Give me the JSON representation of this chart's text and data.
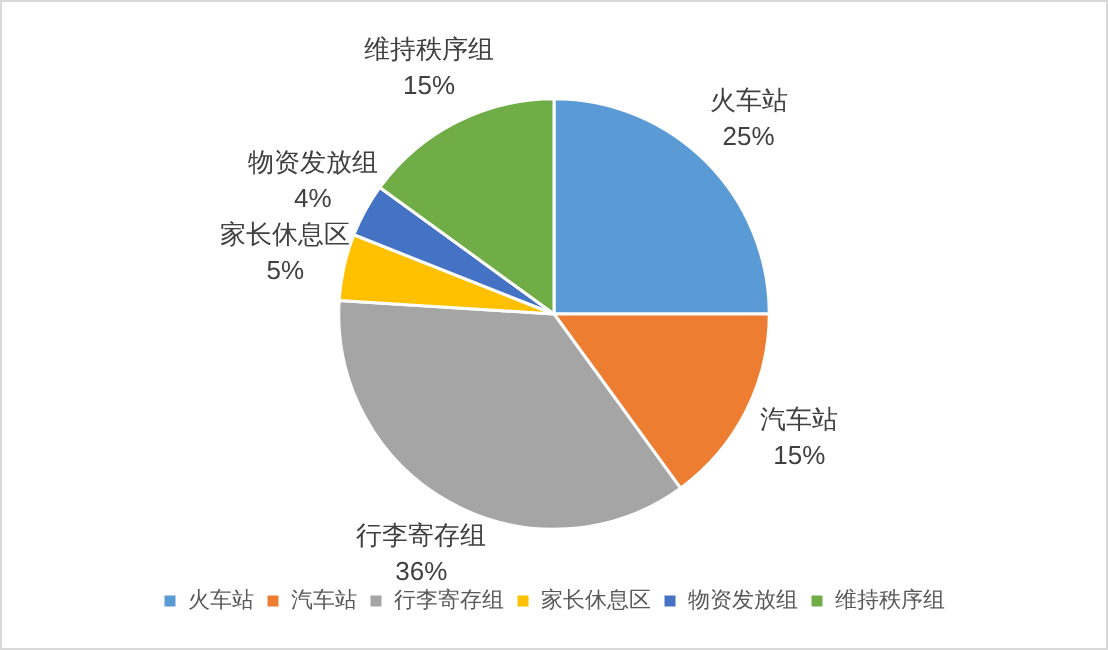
{
  "chart_data": {
    "type": "pie",
    "categories": [
      "火车站",
      "汽车站",
      "行李寄存组",
      "家长休息区",
      "物资发放组",
      "维持秩序组"
    ],
    "values": [
      25,
      15,
      36,
      5,
      4,
      15
    ],
    "value_labels": [
      "25%",
      "15%",
      "36%",
      "5%",
      "4%",
      "15%"
    ],
    "colors": [
      "#5b9bd5",
      "#ed7d31",
      "#a5a5a5",
      "#ffc000",
      "#4472c4",
      "#70ad47"
    ],
    "legend": "bottom"
  }
}
